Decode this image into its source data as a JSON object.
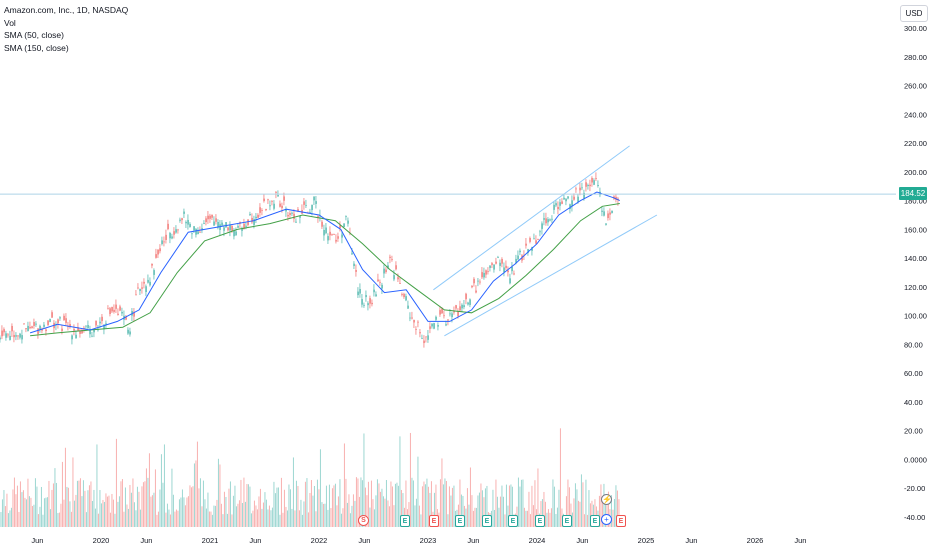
{
  "legend": {
    "symbol": "Amazon.com, Inc., 1D, NASDAQ",
    "vol": "Vol",
    "sma50": "SMA (50, close)",
    "sma150": "SMA (150, close)"
  },
  "currency_button": "USD",
  "last_price": "184.52",
  "colors": {
    "up": "#26a69a",
    "down": "#ef5350",
    "sma50": "#2962ff",
    "sma150": "#43a047",
    "channel": "#90caf9",
    "price_line": "#aed3e6"
  },
  "events": {
    "dividend_label": "S",
    "earnings_label": "E",
    "flash_icon": "lightning-icon",
    "plus_icon": "plus-icon"
  },
  "chart_data": {
    "type": "line",
    "ylabels": [
      "300.00",
      "280.00",
      "260.00",
      "240.00",
      "220.00",
      "200.00",
      "180.00",
      "160.00",
      "140.00",
      "120.00",
      "100.00",
      "80.00",
      "60.00",
      "40.00",
      "20.00",
      "0.0000",
      "-20.00",
      "-40.00"
    ],
    "xlabels": [
      "Jun",
      "2020",
      "Jun",
      "2021",
      "Jun",
      "2022",
      "Jun",
      "2023",
      "Jun",
      "2024",
      "Jun",
      "2025",
      "Jun",
      "2026",
      "Jun"
    ],
    "x_dates": [
      "2019-06",
      "2020-01",
      "2020-06",
      "2021-01",
      "2021-06",
      "2022-01",
      "2022-06",
      "2023-01",
      "2023-06",
      "2024-01",
      "2024-06",
      "2025-01",
      "2025-06",
      "2026-01",
      "2026-06"
    ],
    "ylim": [
      -40,
      300
    ],
    "price_path": [
      [
        2019.35,
        90
      ],
      [
        2019.55,
        96
      ],
      [
        2019.7,
        92
      ],
      [
        2019.85,
        88
      ],
      [
        2019.95,
        92
      ],
      [
        2020.1,
        104
      ],
      [
        2020.2,
        98
      ],
      [
        2020.25,
        90
      ],
      [
        2020.35,
        120
      ],
      [
        2020.45,
        128
      ],
      [
        2020.55,
        150
      ],
      [
        2020.65,
        160
      ],
      [
        2020.75,
        168
      ],
      [
        2020.85,
        160
      ],
      [
        2020.95,
        164
      ],
      [
        2021.1,
        166
      ],
      [
        2021.25,
        158
      ],
      [
        2021.35,
        168
      ],
      [
        2021.5,
        176
      ],
      [
        2021.6,
        182
      ],
      [
        2021.75,
        168
      ],
      [
        2021.85,
        172
      ],
      [
        2021.95,
        178
      ],
      [
        2022.05,
        162
      ],
      [
        2022.15,
        152
      ],
      [
        2022.25,
        168
      ],
      [
        2022.35,
        120
      ],
      [
        2022.45,
        106
      ],
      [
        2022.55,
        122
      ],
      [
        2022.65,
        140
      ],
      [
        2022.75,
        118
      ],
      [
        2022.85,
        98
      ],
      [
        2022.95,
        84
      ],
      [
        2023.05,
        94
      ],
      [
        2023.15,
        98
      ],
      [
        2023.3,
        104
      ],
      [
        2023.45,
        122
      ],
      [
        2023.55,
        130
      ],
      [
        2023.65,
        138
      ],
      [
        2023.75,
        128
      ],
      [
        2023.85,
        142
      ],
      [
        2023.95,
        150
      ],
      [
        2024.05,
        164
      ],
      [
        2024.15,
        174
      ],
      [
        2024.25,
        180
      ],
      [
        2024.35,
        184
      ],
      [
        2024.45,
        186
      ],
      [
        2024.52,
        198
      ],
      [
        2024.58,
        182
      ],
      [
        2024.62,
        166
      ],
      [
        2024.66,
        174
      ],
      [
        2024.72,
        182
      ],
      [
        2024.76,
        184.52
      ]
    ],
    "sma50": [
      [
        2019.35,
        88
      ],
      [
        2019.6,
        94
      ],
      [
        2019.9,
        90
      ],
      [
        2020.15,
        96
      ],
      [
        2020.35,
        104
      ],
      [
        2020.55,
        130
      ],
      [
        2020.8,
        158
      ],
      [
        2021.1,
        162
      ],
      [
        2021.4,
        166
      ],
      [
        2021.7,
        174
      ],
      [
        2022.0,
        170
      ],
      [
        2022.2,
        160
      ],
      [
        2022.4,
        132
      ],
      [
        2022.6,
        116
      ],
      [
        2022.8,
        118
      ],
      [
        2023.0,
        96
      ],
      [
        2023.2,
        96
      ],
      [
        2023.4,
        104
      ],
      [
        2023.6,
        124
      ],
      [
        2023.8,
        136
      ],
      [
        2024.0,
        150
      ],
      [
        2024.2,
        170
      ],
      [
        2024.4,
        180
      ],
      [
        2024.55,
        186
      ],
      [
        2024.7,
        182
      ],
      [
        2024.76,
        180
      ]
    ],
    "sma150": [
      [
        2019.35,
        86
      ],
      [
        2019.6,
        88
      ],
      [
        2019.9,
        90
      ],
      [
        2020.2,
        92
      ],
      [
        2020.45,
        102
      ],
      [
        2020.7,
        130
      ],
      [
        2020.95,
        152
      ],
      [
        2021.25,
        160
      ],
      [
        2021.55,
        164
      ],
      [
        2021.85,
        170
      ],
      [
        2022.15,
        166
      ],
      [
        2022.4,
        150
      ],
      [
        2022.65,
        132
      ],
      [
        2022.9,
        118
      ],
      [
        2023.15,
        104
      ],
      [
        2023.4,
        102
      ],
      [
        2023.65,
        112
      ],
      [
        2023.9,
        128
      ],
      [
        2024.15,
        146
      ],
      [
        2024.4,
        166
      ],
      [
        2024.6,
        176
      ],
      [
        2024.76,
        178
      ]
    ],
    "channel_upper": [
      [
        2023.05,
        118
      ],
      [
        2024.85,
        218
      ]
    ],
    "channel_lower": [
      [
        2023.15,
        86
      ],
      [
        2025.1,
        170
      ]
    ],
    "last_value": 184.52,
    "series": [
      {
        "name": "SMA (50, close)"
      },
      {
        "name": "SMA (150, close)"
      }
    ]
  }
}
